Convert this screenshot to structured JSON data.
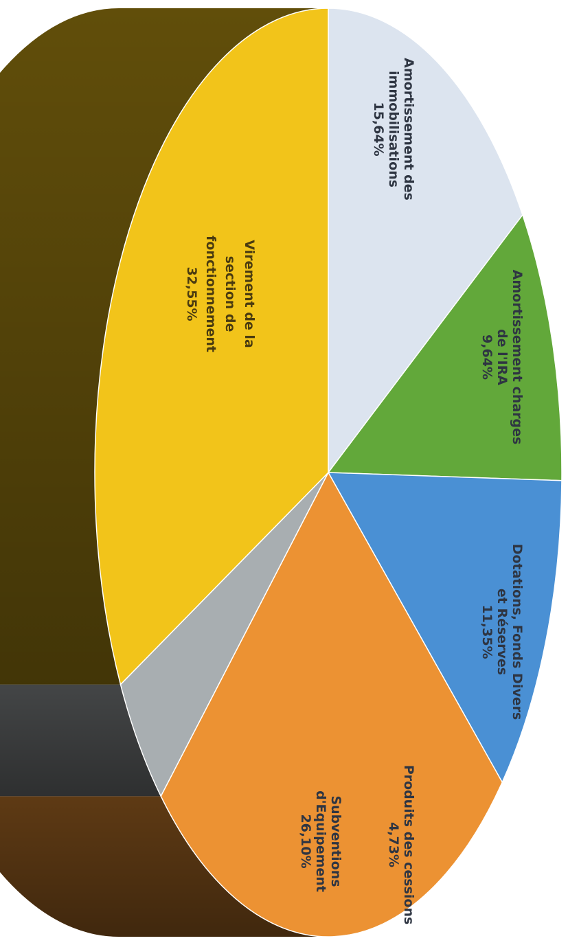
{
  "chart_data": {
    "type": "pie",
    "style": "3d",
    "orientation": "rotated-90-clockwise",
    "title": "",
    "slices": [
      {
        "label_lines": [
          "Amortissement des",
          "immobilisations",
          "15,64%"
        ],
        "value": 15.64,
        "color": "#dce4ef"
      },
      {
        "label_lines": [
          "Amortissement charges",
          "de l'IRA",
          "9,64%"
        ],
        "value": 9.64,
        "color": "#62a83a"
      },
      {
        "label_lines": [
          "Dotations, Fonds Divers",
          "et Réserves",
          "11,35%"
        ],
        "value": 11.35,
        "color": "#4a90d4"
      },
      {
        "label_lines": [
          "Subventions",
          "d'Equipement",
          "26,10%"
        ],
        "value": 26.1,
        "color": "#ec9233"
      },
      {
        "label_lines": [
          "Produits des cessions",
          "4,73%"
        ],
        "value": 4.73,
        "color": "#a8aeb1"
      },
      {
        "label_lines": [
          "Virement de la",
          "section de",
          "fonctionnement",
          "32,55%"
        ],
        "value": 32.55,
        "color": "#f2c41a"
      }
    ],
    "legend": "none"
  }
}
